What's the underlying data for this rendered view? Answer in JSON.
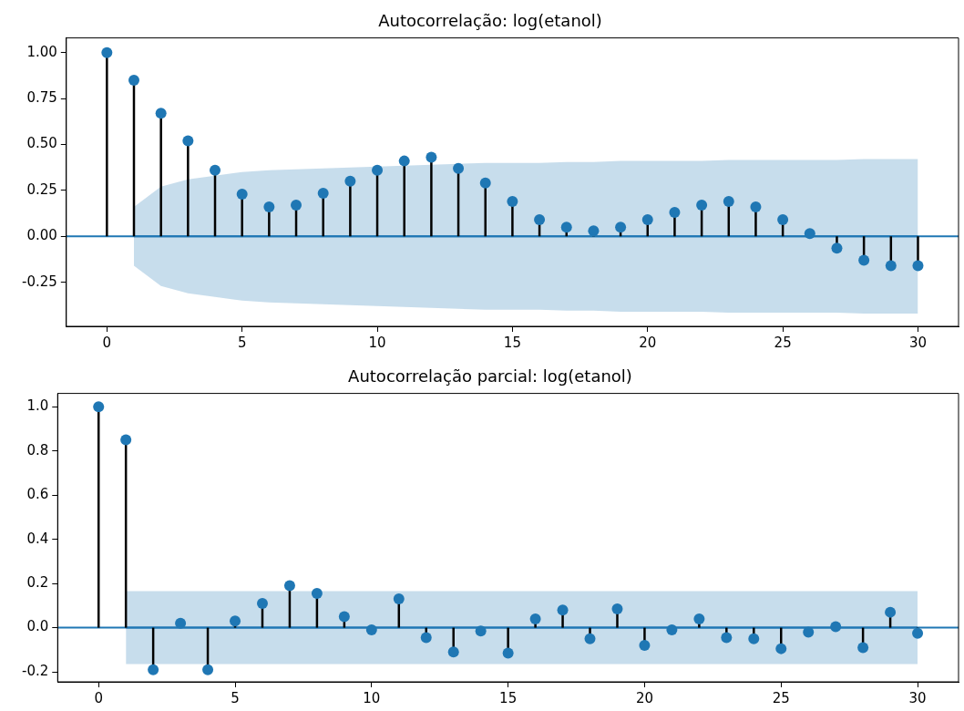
{
  "chart_data": [
    {
      "type": "lollipop",
      "title": "Autocorrelação: log(etanol)",
      "xlim": [
        -1.5,
        31.5
      ],
      "xticks": [
        0,
        5,
        10,
        15,
        20,
        25,
        30
      ],
      "ylim": [
        -0.49,
        1.08
      ],
      "yticks": [
        -0.25,
        {
          "value": 0,
          "label": "0.00"
        },
        0.25,
        {
          "value": 0.5,
          "label": "0.50"
        },
        0.75,
        {
          "value": 1,
          "label": "1.00"
        }
      ],
      "legend": false,
      "ref_lines": [
        {
          "axis": "y",
          "value": 0,
          "color": "#1f77b4"
        }
      ],
      "series": [
        {
          "marker": "circle",
          "color": "#1f77b4",
          "x": [
            0,
            1,
            2,
            3,
            4,
            5,
            6,
            7,
            8,
            9,
            10,
            11,
            12,
            13,
            14,
            15,
            16,
            17,
            18,
            19,
            20,
            21,
            22,
            23,
            24,
            25,
            26,
            27,
            28,
            29,
            30
          ],
          "values": [
            1,
            0.85,
            0.67,
            0.52,
            0.36,
            0.23,
            0.16,
            0.17,
            0.235,
            0.3,
            0.36,
            0.41,
            0.43,
            0.37,
            0.29,
            0.19,
            0.09,
            0.05,
            0.03,
            0.05,
            0.09,
            0.13,
            0.17,
            0.19,
            0.16,
            0.09,
            0.015,
            -0.065,
            -0.13,
            -0.16,
            -0.16
          ]
        },
        {
          "type": "line",
          "color": "#1f77b4",
          "x": [
            1,
            2,
            3,
            4,
            5,
            6,
            7,
            8,
            9,
            10,
            11,
            12,
            13,
            14,
            15,
            16,
            17,
            18,
            19,
            20,
            21,
            22,
            23,
            24,
            25,
            26,
            27,
            28,
            29,
            30
          ],
          "values": [
            0,
            0,
            0,
            0,
            0,
            0,
            0,
            0,
            0,
            0,
            0,
            0,
            0,
            0,
            0,
            0,
            0,
            0,
            0,
            0,
            0,
            0,
            0,
            0,
            0,
            0,
            0,
            0,
            0,
            0
          ],
          "lower": [
            -0.16,
            -0.27,
            -0.31,
            -0.33,
            -0.35,
            -0.36,
            -0.365,
            -0.37,
            -0.375,
            -0.38,
            -0.385,
            -0.39,
            -0.395,
            -0.4,
            -0.4,
            -0.4,
            -0.405,
            -0.405,
            -0.41,
            -0.41,
            -0.41,
            -0.41,
            -0.415,
            -0.415,
            -0.415,
            -0.415,
            -0.415,
            -0.42,
            -0.42,
            -0.42
          ],
          "upper": [
            0.16,
            0.27,
            0.31,
            0.33,
            0.35,
            0.36,
            0.365,
            0.37,
            0.375,
            0.38,
            0.385,
            0.39,
            0.395,
            0.4,
            0.4,
            0.4,
            0.405,
            0.405,
            0.41,
            0.41,
            0.41,
            0.41,
            0.415,
            0.415,
            0.415,
            0.415,
            0.415,
            0.42,
            0.42,
            0.42
          ]
        }
      ]
    },
    {
      "type": "lollipop",
      "title": "Autocorrelação parcial: log(etanol)",
      "xlim": [
        -1.5,
        31.5
      ],
      "xticks": [
        0,
        5,
        10,
        15,
        20,
        25,
        30
      ],
      "ylim": [
        -0.245,
        1.06
      ],
      "yticks": [
        -0.2,
        {
          "value": 0,
          "label": "0.0"
        },
        0.2,
        0.4,
        0.6,
        0.8,
        {
          "value": 1,
          "label": "1.0"
        }
      ],
      "legend": false,
      "ref_lines": [
        {
          "axis": "y",
          "value": 0,
          "color": "#1f77b4"
        }
      ],
      "series": [
        {
          "marker": "circle",
          "color": "#1f77b4",
          "x": [
            0,
            1,
            2,
            3,
            4,
            5,
            6,
            7,
            8,
            9,
            10,
            11,
            12,
            13,
            14,
            15,
            16,
            17,
            18,
            19,
            20,
            21,
            22,
            23,
            24,
            25,
            26,
            27,
            28,
            29,
            30
          ],
          "values": [
            1,
            0.85,
            -0.19,
            0.02,
            -0.19,
            0.03,
            0.11,
            0.19,
            0.155,
            0.05,
            -0.01,
            0.13,
            -0.045,
            -0.11,
            -0.015,
            -0.115,
            0.04,
            0.08,
            -0.05,
            0.085,
            -0.08,
            -0.01,
            0.04,
            -0.045,
            -0.05,
            -0.095,
            -0.02,
            0.005,
            -0.09,
            0.07,
            -0.025
          ]
        },
        {
          "type": "line",
          "color": "#1f77b4",
          "x": [
            1,
            2,
            3,
            4,
            5,
            6,
            7,
            8,
            9,
            10,
            11,
            12,
            13,
            14,
            15,
            16,
            17,
            18,
            19,
            20,
            21,
            22,
            23,
            24,
            25,
            26,
            27,
            28,
            29,
            30
          ],
          "values": [
            0,
            0,
            0,
            0,
            0,
            0,
            0,
            0,
            0,
            0,
            0,
            0,
            0,
            0,
            0,
            0,
            0,
            0,
            0,
            0,
            0,
            0,
            0,
            0,
            0,
            0,
            0,
            0,
            0,
            0
          ],
          "lower": [
            -0.165,
            -0.165,
            -0.165,
            -0.165,
            -0.165,
            -0.165,
            -0.165,
            -0.165,
            -0.165,
            -0.165,
            -0.165,
            -0.165,
            -0.165,
            -0.165,
            -0.165,
            -0.165,
            -0.165,
            -0.165,
            -0.165,
            -0.165,
            -0.165,
            -0.165,
            -0.165,
            -0.165,
            -0.165,
            -0.165,
            -0.165,
            -0.165,
            -0.165,
            -0.165
          ],
          "upper": [
            0.165,
            0.165,
            0.165,
            0.165,
            0.165,
            0.165,
            0.165,
            0.165,
            0.165,
            0.165,
            0.165,
            0.165,
            0.165,
            0.165,
            0.165,
            0.165,
            0.165,
            0.165,
            0.165,
            0.165,
            0.165,
            0.165,
            0.165,
            0.165,
            0.165,
            0.165,
            0.165,
            0.165,
            0.165,
            0.165
          ]
        }
      ]
    }
  ]
}
